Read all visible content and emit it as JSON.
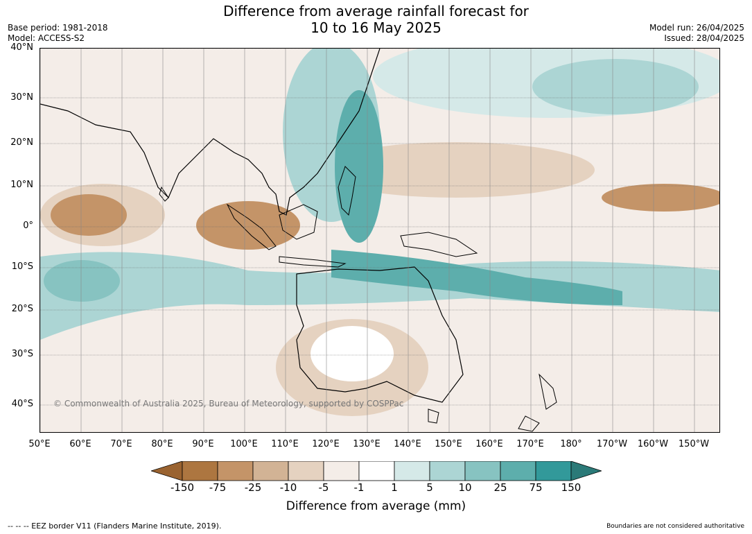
{
  "header": {
    "title_line1": "Difference from average rainfall forecast for",
    "title_line2": "10 to 16 May 2025",
    "base_period": "Base period: 1981-2018",
    "model": "Model: ACCESS-S2",
    "model_run": "Model run: 26/04/2025",
    "issued": "Issued: 28/04/2025"
  },
  "map": {
    "lat_labels": [
      "40°N",
      "30°N",
      "20°N",
      "10°N",
      "0°",
      "10°S",
      "20°S",
      "30°S",
      "40°S"
    ],
    "lon_labels": [
      "50°E",
      "60°E",
      "70°E",
      "80°E",
      "90°E",
      "100°E",
      "110°E",
      "120°E",
      "130°E",
      "140°E",
      "150°E",
      "160°E",
      "170°E",
      "180°",
      "170°W",
      "160°W",
      "150°W"
    ],
    "copyright": "© Commonwealth of Australia 2025, Bureau of Meteorology, supported by COSPPac"
  },
  "legend": {
    "title": "Difference from average (mm)",
    "tick_labels": [
      "-150",
      "-75",
      "-25",
      "-10",
      "-5",
      "-1",
      "1",
      "5",
      "10",
      "25",
      "75",
      "150"
    ],
    "colors": [
      "#9a6330",
      "#ad7640",
      "#c49468",
      "#d2b395",
      "#e5d2c0",
      "#f4ede8",
      "#ffffff",
      "#d5e9e8",
      "#acd5d4",
      "#87c3c1",
      "#5daeac",
      "#32999a",
      "#2b7a78"
    ]
  },
  "footer": {
    "eez": "--  --  -- EEZ border V11 (Flanders Marine Institute, 2019).",
    "disclaimer": "Boundaries are not considered authoritative"
  }
}
